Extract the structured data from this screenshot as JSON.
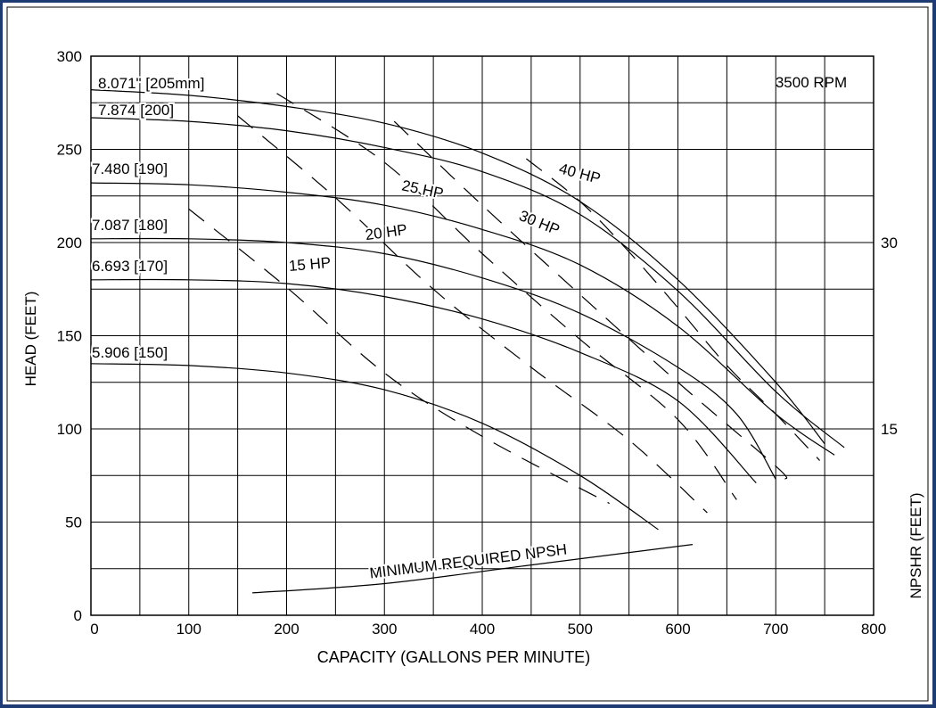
{
  "colors": {
    "frame": "#1f3b73",
    "background": "#ffffff",
    "grid": "#000000",
    "curve": "#000000"
  },
  "chart_data": {
    "type": "line",
    "xlabel": "CAPACITY (GALLONS PER MINUTE)",
    "ylabel": "HEAD (FEET)",
    "y2label": "NPSHR (FEET)",
    "speed_label": "3500 RPM",
    "xlim": [
      0,
      800
    ],
    "ylim": [
      0,
      300
    ],
    "y2lim": [
      0,
      45
    ],
    "x_ticks": [
      0,
      100,
      200,
      300,
      400,
      500,
      600,
      700,
      800
    ],
    "y_ticks": [
      0,
      50,
      100,
      150,
      200,
      250,
      300
    ],
    "y2_ticks": [
      15,
      30
    ],
    "grid": true,
    "series": [
      {
        "name": "8.071\" [205mm]",
        "kind": "impeller",
        "x": [
          0,
          100,
          200,
          300,
          400,
          500,
          600,
          700,
          750
        ],
        "y": [
          282,
          279,
          273,
          264,
          248,
          222,
          180,
          125,
          92
        ]
      },
      {
        "name": "7.874 [200]",
        "kind": "impeller",
        "x": [
          0,
          100,
          200,
          300,
          400,
          500,
          600,
          700,
          770
        ],
        "y": [
          267,
          265,
          260,
          251,
          238,
          215,
          174,
          120,
          90
        ]
      },
      {
        "name": "7.480 [190]",
        "kind": "impeller",
        "x": [
          0,
          100,
          200,
          300,
          400,
          500,
          600,
          700,
          760
        ],
        "y": [
          232,
          231,
          227,
          220,
          207,
          188,
          155,
          108,
          86
        ]
      },
      {
        "name": "7.087 [180]",
        "kind": "impeller",
        "x": [
          0,
          100,
          200,
          300,
          400,
          500,
          600,
          660,
          700
        ],
        "y": [
          202,
          202,
          200,
          194,
          181,
          162,
          133,
          108,
          73
        ]
      },
      {
        "name": "6.693 [170]",
        "kind": "impeller",
        "x": [
          0,
          100,
          200,
          300,
          400,
          500,
          600,
          680
        ],
        "y": [
          180,
          180,
          178,
          171,
          159,
          141,
          115,
          71
        ]
      },
      {
        "name": "5.906 [150]",
        "kind": "impeller",
        "x": [
          0,
          100,
          200,
          300,
          400,
          500,
          580
        ],
        "y": [
          135,
          134,
          130,
          121,
          103,
          75,
          46
        ]
      },
      {
        "name": "15 HP",
        "kind": "power",
        "x": [
          100,
          200,
          300,
          400,
          530
        ],
        "y": [
          218,
          176,
          130,
          96,
          60
        ]
      },
      {
        "name": "20 HP",
        "kind": "power",
        "x": [
          150,
          250,
          350,
          450,
          550,
          630
        ],
        "y": [
          268,
          224,
          175,
          133,
          94,
          55
        ]
      },
      {
        "name": "25 HP",
        "kind": "power",
        "x": [
          190,
          300,
          400,
          500,
          600,
          660
        ],
        "y": [
          280,
          243,
          194,
          148,
          105,
          62
        ]
      },
      {
        "name": "30 HP",
        "kind": "power",
        "x": [
          310,
          400,
          500,
          600,
          700,
          710
        ],
        "y": [
          265,
          220,
          172,
          125,
          80,
          73
        ]
      },
      {
        "name": "40 HP",
        "kind": "power",
        "x": [
          445,
          500,
          550,
          600,
          650,
          700,
          745
        ],
        "y": [
          245,
          222,
          195,
          165,
          134,
          108,
          83
        ]
      },
      {
        "name": "MINIMUM REQUIRED NPSH",
        "kind": "npsh",
        "x": [
          165,
          300,
          450,
          615
        ],
        "y": [
          12,
          17,
          27,
          38
        ]
      }
    ]
  }
}
